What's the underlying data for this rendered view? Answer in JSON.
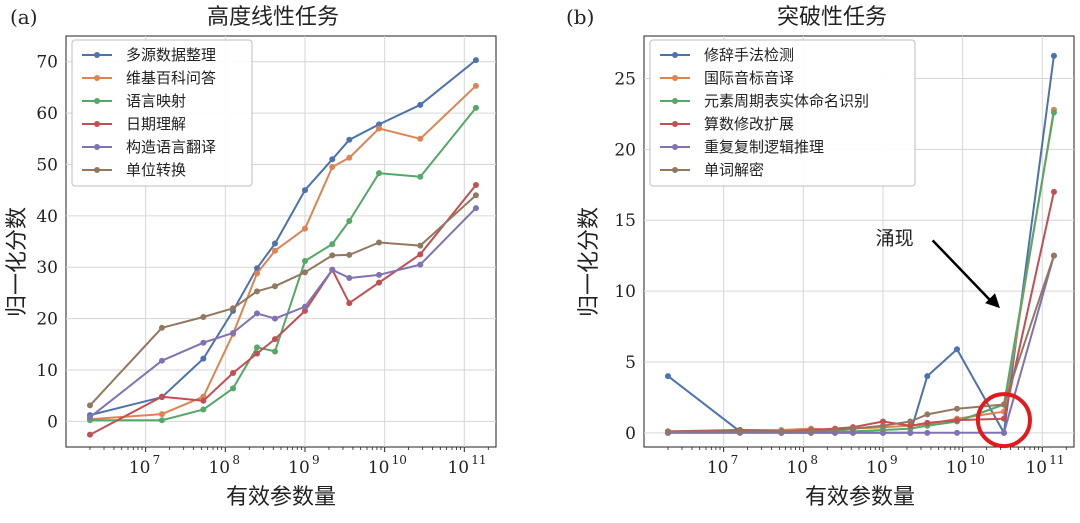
{
  "chart_data": [
    {
      "panel_label": "(a)",
      "type": "line",
      "title": "高度线性任务",
      "xlabel": "有效参数量",
      "ylabel": "",
      "xscale": "log",
      "xlim": [
        1000000.0,
        250000000000.0
      ],
      "ylim": [
        -5,
        75
      ],
      "yticks": [
        0,
        10,
        20,
        30,
        40,
        50,
        60,
        70
      ],
      "xticks": [
        {
          "value": 10000000.0,
          "label": "10",
          "exp": "7"
        },
        {
          "value": 100000000.0,
          "label": "10",
          "exp": "8"
        },
        {
          "value": 1000000000.0,
          "label": "10",
          "exp": "9"
        },
        {
          "value": 10000000000.0,
          "label": "10",
          "exp": "10"
        },
        {
          "value": 100000000000.0,
          "label": "10",
          "exp": "11"
        }
      ],
      "grid": true,
      "legend_position": "top-left",
      "series": [
        {
          "name": "多源数据整理",
          "color": "#4c72b0",
          "x": [
            2000000.0,
            16000000.0,
            53000000.0,
            125000000.0,
            250000000.0,
            420000000.0,
            1000000000.0,
            2200000000.0,
            3600000000.0,
            8500000000.0,
            28000000000.0,
            140000000000.0
          ],
          "y": [
            1.2,
            4.7,
            12.2,
            21.5,
            29.8,
            34.6,
            45.0,
            51.0,
            54.8,
            57.8,
            61.6,
            70.3
          ]
        },
        {
          "name": "维基百科问答",
          "color": "#dd8452",
          "x": [
            2000000.0,
            16000000.0,
            53000000.0,
            125000000.0,
            250000000.0,
            420000000.0,
            1000000000.0,
            2200000000.0,
            3600000000.0,
            8500000000.0,
            28000000000.0,
            140000000000.0
          ],
          "y": [
            0.4,
            1.4,
            4.8,
            17.0,
            28.8,
            33.2,
            37.5,
            49.5,
            51.3,
            57.0,
            55.0,
            65.3
          ]
        },
        {
          "name": "语言映射",
          "color": "#55a868",
          "x": [
            2000000.0,
            16000000.0,
            53000000.0,
            125000000.0,
            250000000.0,
            420000000.0,
            1000000000.0,
            2200000000.0,
            3600000000.0,
            8500000000.0,
            28000000000.0,
            140000000000.0
          ],
          "y": [
            0.2,
            0.2,
            2.3,
            6.4,
            14.4,
            13.6,
            31.2,
            34.5,
            39.0,
            48.3,
            47.6,
            61.0
          ]
        },
        {
          "name": "日期理解",
          "color": "#c44e52",
          "x": [
            2000000.0,
            16000000.0,
            53000000.0,
            125000000.0,
            250000000.0,
            420000000.0,
            1000000000.0,
            2200000000.0,
            3600000000.0,
            8500000000.0,
            28000000000.0,
            140000000000.0
          ],
          "y": [
            -2.6,
            4.8,
            4.0,
            9.4,
            13.2,
            16.0,
            21.5,
            29.5,
            23.0,
            27.0,
            32.5,
            46.0
          ]
        },
        {
          "name": "构造语言翻译",
          "color": "#8172b3",
          "x": [
            2000000.0,
            16000000.0,
            53000000.0,
            125000000.0,
            250000000.0,
            420000000.0,
            1000000000.0,
            2200000000.0,
            3600000000.0,
            8500000000.0,
            28000000000.0,
            140000000000.0
          ],
          "y": [
            0.8,
            11.8,
            15.3,
            17.2,
            21.0,
            20.0,
            22.3,
            29.5,
            27.9,
            28.5,
            30.5,
            41.5
          ]
        },
        {
          "name": "单位转换",
          "color": "#937860",
          "x": [
            2000000.0,
            16000000.0,
            53000000.0,
            125000000.0,
            250000000.0,
            420000000.0,
            1000000000.0,
            2200000000.0,
            3600000000.0,
            8500000000.0,
            28000000000.0,
            140000000000.0
          ],
          "y": [
            3.1,
            18.2,
            20.3,
            22.0,
            25.3,
            26.3,
            29.0,
            32.3,
            32.4,
            34.8,
            34.2,
            44.0
          ]
        }
      ]
    },
    {
      "panel_label": "(b)",
      "type": "line",
      "title": "突破性任务",
      "xlabel": "有效参数量",
      "ylabel": "归一化分数",
      "xscale": "log",
      "xlim": [
        1000000.0,
        250000000000.0
      ],
      "ylim": [
        -1,
        28
      ],
      "yticks": [
        0,
        5,
        10,
        15,
        20,
        25
      ],
      "xticks": [
        {
          "value": 10000000.0,
          "label": "10",
          "exp": "7"
        },
        {
          "value": 100000000.0,
          "label": "10",
          "exp": "8"
        },
        {
          "value": 1000000000.0,
          "label": "10",
          "exp": "9"
        },
        {
          "value": 10000000000.0,
          "label": "10",
          "exp": "10"
        },
        {
          "value": 100000000000.0,
          "label": "10",
          "exp": "11"
        }
      ],
      "grid": true,
      "legend_position": "top-left",
      "annotation": {
        "text": "涌现",
        "arrow_to_x": 33000000000.0,
        "arrow_to_y": 8.8,
        "text_x": 1400000000.0,
        "text_y": 13.3,
        "circle_x": 33000000000.0,
        "circle_y": 0.9
      },
      "series": [
        {
          "name": "修辞手法检测",
          "color": "#4c72b0",
          "x": [
            2000000.0,
            16000000.0,
            53000000.0,
            125000000.0,
            250000000.0,
            420000000.0,
            1000000000.0,
            2200000000.0,
            3600000000.0,
            8500000000.0,
            33000000000.0,
            140000000000.0
          ],
          "y": [
            4.0,
            0.1,
            0.0,
            0.0,
            0.0,
            0.0,
            0.0,
            0.0,
            4.0,
            5.9,
            0.0,
            26.6
          ]
        },
        {
          "name": "国际音标音译",
          "color": "#dd8452",
          "x": [
            2000000.0,
            16000000.0,
            53000000.0,
            125000000.0,
            250000000.0,
            420000000.0,
            1000000000.0,
            2200000000.0,
            3600000000.0,
            8500000000.0,
            33000000000.0,
            140000000000.0
          ],
          "y": [
            0.0,
            0.2,
            0.2,
            0.3,
            0.2,
            0.3,
            0.4,
            0.5,
            0.6,
            1.0,
            1.5,
            22.8
          ]
        },
        {
          "name": "元素周期表实体命名识别",
          "color": "#55a868",
          "x": [
            2000000.0,
            16000000.0,
            53000000.0,
            125000000.0,
            250000000.0,
            420000000.0,
            1000000000.0,
            2200000000.0,
            3600000000.0,
            8500000000.0,
            33000000000.0,
            140000000000.0
          ],
          "y": [
            0.0,
            0.0,
            0.0,
            0.0,
            0.1,
            0.1,
            0.2,
            0.3,
            0.5,
            0.8,
            2.0,
            22.6
          ]
        },
        {
          "name": "算数修改扩展",
          "color": "#c44e52",
          "x": [
            2000000.0,
            16000000.0,
            53000000.0,
            125000000.0,
            250000000.0,
            420000000.0,
            1000000000.0,
            2200000000.0,
            3600000000.0,
            8500000000.0,
            33000000000.0,
            140000000000.0
          ],
          "y": [
            0.1,
            0.2,
            0.1,
            0.2,
            0.3,
            0.4,
            0.8,
            0.5,
            0.7,
            0.9,
            1.0,
            17.0
          ]
        },
        {
          "name": "重复复制逻辑推理",
          "color": "#8172b3",
          "x": [
            2000000.0,
            16000000.0,
            53000000.0,
            125000000.0,
            250000000.0,
            420000000.0,
            1000000000.0,
            2200000000.0,
            3600000000.0,
            8500000000.0,
            33000000000.0,
            140000000000.0
          ],
          "y": [
            0.0,
            0.0,
            0.0,
            0.0,
            0.0,
            0.0,
            0.0,
            0.0,
            0.0,
            0.0,
            0.0,
            12.5
          ]
        },
        {
          "name": "单词解密",
          "color": "#937860",
          "x": [
            2000000.0,
            16000000.0,
            53000000.0,
            125000000.0,
            250000000.0,
            420000000.0,
            1000000000.0,
            2200000000.0,
            3600000000.0,
            8500000000.0,
            33000000000.0,
            140000000000.0
          ],
          "y": [
            0.1,
            0.1,
            0.1,
            0.1,
            0.2,
            0.3,
            0.5,
            0.8,
            1.3,
            1.7,
            2.0,
            12.5
          ]
        }
      ]
    }
  ]
}
